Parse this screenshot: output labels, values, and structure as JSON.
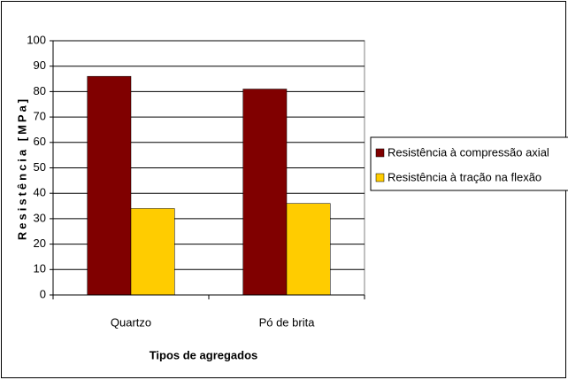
{
  "chart_data": {
    "type": "bar",
    "categories": [
      "Quartzo",
      "Pó de brita"
    ],
    "series": [
      {
        "name": "Resistência à compressão axial",
        "color": "#800000",
        "values": [
          86,
          81
        ]
      },
      {
        "name": "Resistência à tração na flexão",
        "color": "#ffcc00",
        "values": [
          34,
          36
        ]
      }
    ],
    "xlabel": "Tipos de agregados",
    "ylabel": "Resistência [MPa]",
    "ylim": [
      0,
      100
    ],
    "yticks": [
      0,
      10,
      20,
      30,
      40,
      50,
      60,
      70,
      80,
      90,
      100
    ],
    "grid": true,
    "legend": "right"
  }
}
